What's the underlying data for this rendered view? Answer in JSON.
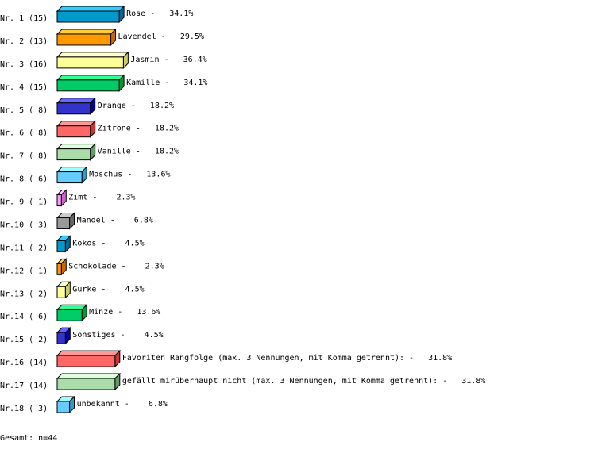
{
  "chart_data": {
    "type": "bar",
    "orientation": "horizontal",
    "style": "3d",
    "unit": "%",
    "categories": [
      "Rose",
      "Lavendel",
      "Jasmin",
      "Kamille",
      "Orange",
      "Zitrone",
      "Vanille",
      "Moschus",
      "Zimt",
      "Mandel",
      "Kokos",
      "Schokolade",
      "Gurke",
      "Minze",
      "Sonstiges",
      "Favoriten Rangfolge (max. 3 Nennungen, mit Komma getrennt):",
      "gefällt mirüberhaupt nicht (max. 3 Nennungen, mit Komma getrennt):",
      "unbekannt"
    ],
    "row_labels": [
      "Nr. 1 (15)",
      "Nr. 2 (13)",
      "Nr. 3 (16)",
      "Nr. 4 (15)",
      "Nr. 5 ( 8)",
      "Nr. 6 ( 8)",
      "Nr. 7 ( 8)",
      "Nr. 8 ( 6)",
      "Nr. 9 ( 1)",
      "Nr.10 ( 3)",
      "Nr.11 ( 2)",
      "Nr.12 ( 1)",
      "Nr.13 ( 2)",
      "Nr.14 ( 6)",
      "Nr.15 ( 2)",
      "Nr.16 (14)",
      "Nr.17 (14)",
      "Nr.18 ( 3)"
    ],
    "counts": [
      15,
      13,
      16,
      15,
      8,
      8,
      8,
      6,
      1,
      3,
      2,
      1,
      2,
      6,
      2,
      14,
      14,
      3
    ],
    "values": [
      34.1,
      29.5,
      36.4,
      34.1,
      18.2,
      18.2,
      18.2,
      13.6,
      2.3,
      6.8,
      4.5,
      2.3,
      4.5,
      13.6,
      4.5,
      31.8,
      31.8,
      6.8
    ],
    "value_labels": [
      "34.1%",
      "29.5%",
      "36.4%",
      "34.1%",
      "18.2%",
      "18.2%",
      "18.2%",
      "13.6%",
      "2.3%",
      "6.8%",
      "4.5%",
      "2.3%",
      "4.5%",
      "13.6%",
      "4.5%",
      "31.8%",
      "31.8%",
      "6.8%"
    ],
    "colors": [
      {
        "front": "#0099cc",
        "top": "#33ccff",
        "side": "#006699"
      },
      {
        "front": "#ff9900",
        "top": "#ffcc33",
        "side": "#cc6600"
      },
      {
        "front": "#ffff99",
        "top": "#ffffcc",
        "side": "#cccc66"
      },
      {
        "front": "#00cc66",
        "top": "#33ff99",
        "side": "#009933"
      },
      {
        "front": "#3333cc",
        "top": "#6666ff",
        "side": "#000099"
      },
      {
        "front": "#ff6666",
        "top": "#ff9999",
        "side": "#cc3333"
      },
      {
        "front": "#aaddaa",
        "top": "#ddffdd",
        "side": "#669966"
      },
      {
        "front": "#66ccff",
        "top": "#99ffff",
        "side": "#3399cc"
      },
      {
        "front": "#ff99ff",
        "top": "#ffccff",
        "side": "#cc66cc"
      },
      {
        "front": "#999999",
        "top": "#cccccc",
        "side": "#666666"
      }
    ],
    "grid": false,
    "legend": "none"
  },
  "total_label": "Gesamt: n=44"
}
